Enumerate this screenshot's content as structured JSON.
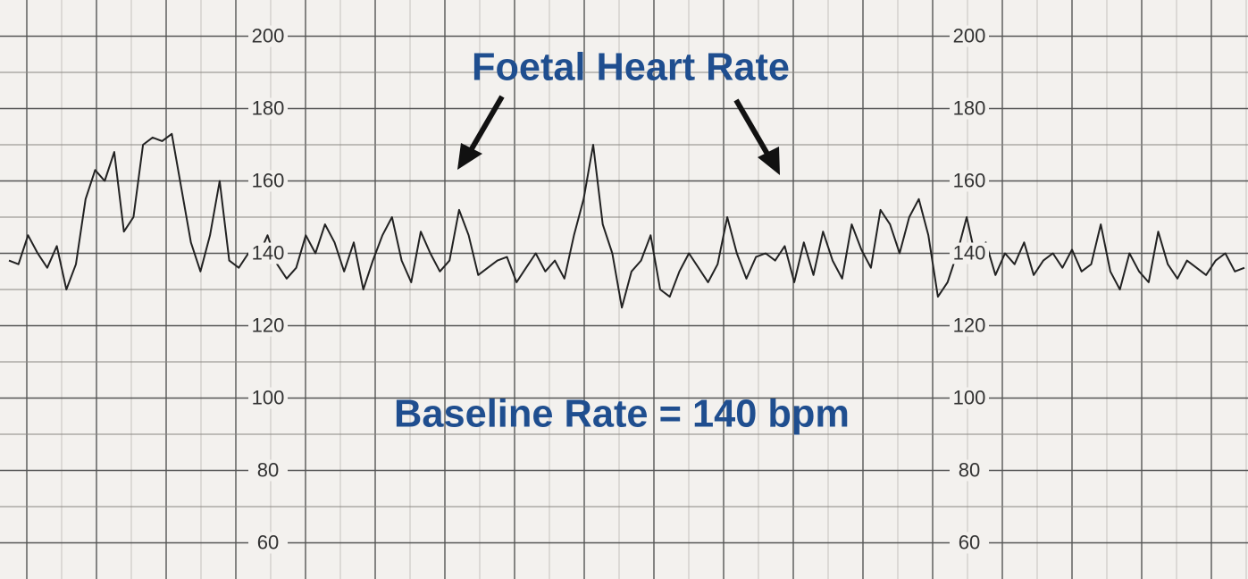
{
  "chart_data": {
    "type": "line",
    "annotations": [
      "Foetal Heart Rate",
      "Baseline Rate = 140 bpm"
    ],
    "ylim": [
      50,
      210
    ],
    "yticks": [
      60,
      80,
      100,
      120,
      140,
      160,
      180,
      200
    ],
    "grid": true,
    "categories": [
      null,
      null,
      null,
      null,
      null,
      null,
      null,
      null,
      null,
      null,
      null,
      null,
      null,
      null,
      null,
      null,
      null,
      null,
      null,
      null,
      null,
      null,
      null,
      null,
      null,
      null,
      null,
      null,
      null,
      null,
      null,
      null,
      null,
      null,
      null,
      null,
      null,
      null,
      null,
      null,
      null,
      null,
      null,
      null,
      null,
      null,
      null,
      null,
      null,
      null,
      null,
      null,
      null,
      null,
      null,
      null,
      null,
      null,
      null,
      null,
      null,
      null,
      null,
      null,
      null,
      null,
      null,
      null,
      null,
      null,
      null,
      null,
      null,
      null,
      null,
      null,
      null,
      null,
      null,
      null,
      null,
      null,
      null,
      null,
      null,
      null,
      null,
      null,
      null,
      null,
      null,
      null,
      null,
      null,
      null,
      null,
      null,
      null,
      null,
      null,
      null,
      null,
      null,
      null,
      null,
      null,
      null,
      null,
      null,
      null,
      null,
      null,
      null,
      null,
      null,
      null,
      null,
      null,
      null,
      null,
      null,
      null,
      null,
      null,
      null,
      null,
      null,
      null,
      null,
      null
    ],
    "series": [
      {
        "color": "#222222",
        "values": [
          138,
          137,
          145,
          140,
          136,
          142,
          130,
          137,
          155,
          163,
          160,
          168,
          146,
          150,
          170,
          172,
          171,
          173,
          158,
          143,
          135,
          145,
          160,
          138,
          136,
          140,
          139,
          145,
          137,
          133,
          136,
          145,
          140,
          148,
          143,
          135,
          143,
          130,
          138,
          145,
          150,
          138,
          132,
          146,
          140,
          135,
          138,
          152,
          145,
          134,
          136,
          138,
          139,
          132,
          136,
          140,
          135,
          138,
          133,
          145,
          155,
          170,
          148,
          140,
          125,
          135,
          138,
          145,
          130,
          128,
          135,
          140,
          136,
          132,
          137,
          150,
          140,
          133,
          139,
          140,
          138,
          142,
          132,
          143,
          134,
          146,
          138,
          133,
          148,
          141,
          136,
          152,
          148,
          140,
          150,
          155,
          145,
          128,
          132,
          140,
          150,
          138,
          143,
          134,
          140,
          137,
          143,
          134,
          138,
          140,
          136,
          141,
          135,
          137,
          148,
          135,
          130,
          140,
          135,
          132,
          146,
          137,
          133,
          138,
          136,
          134,
          138,
          140,
          135,
          136
        ]
      }
    ]
  }
}
